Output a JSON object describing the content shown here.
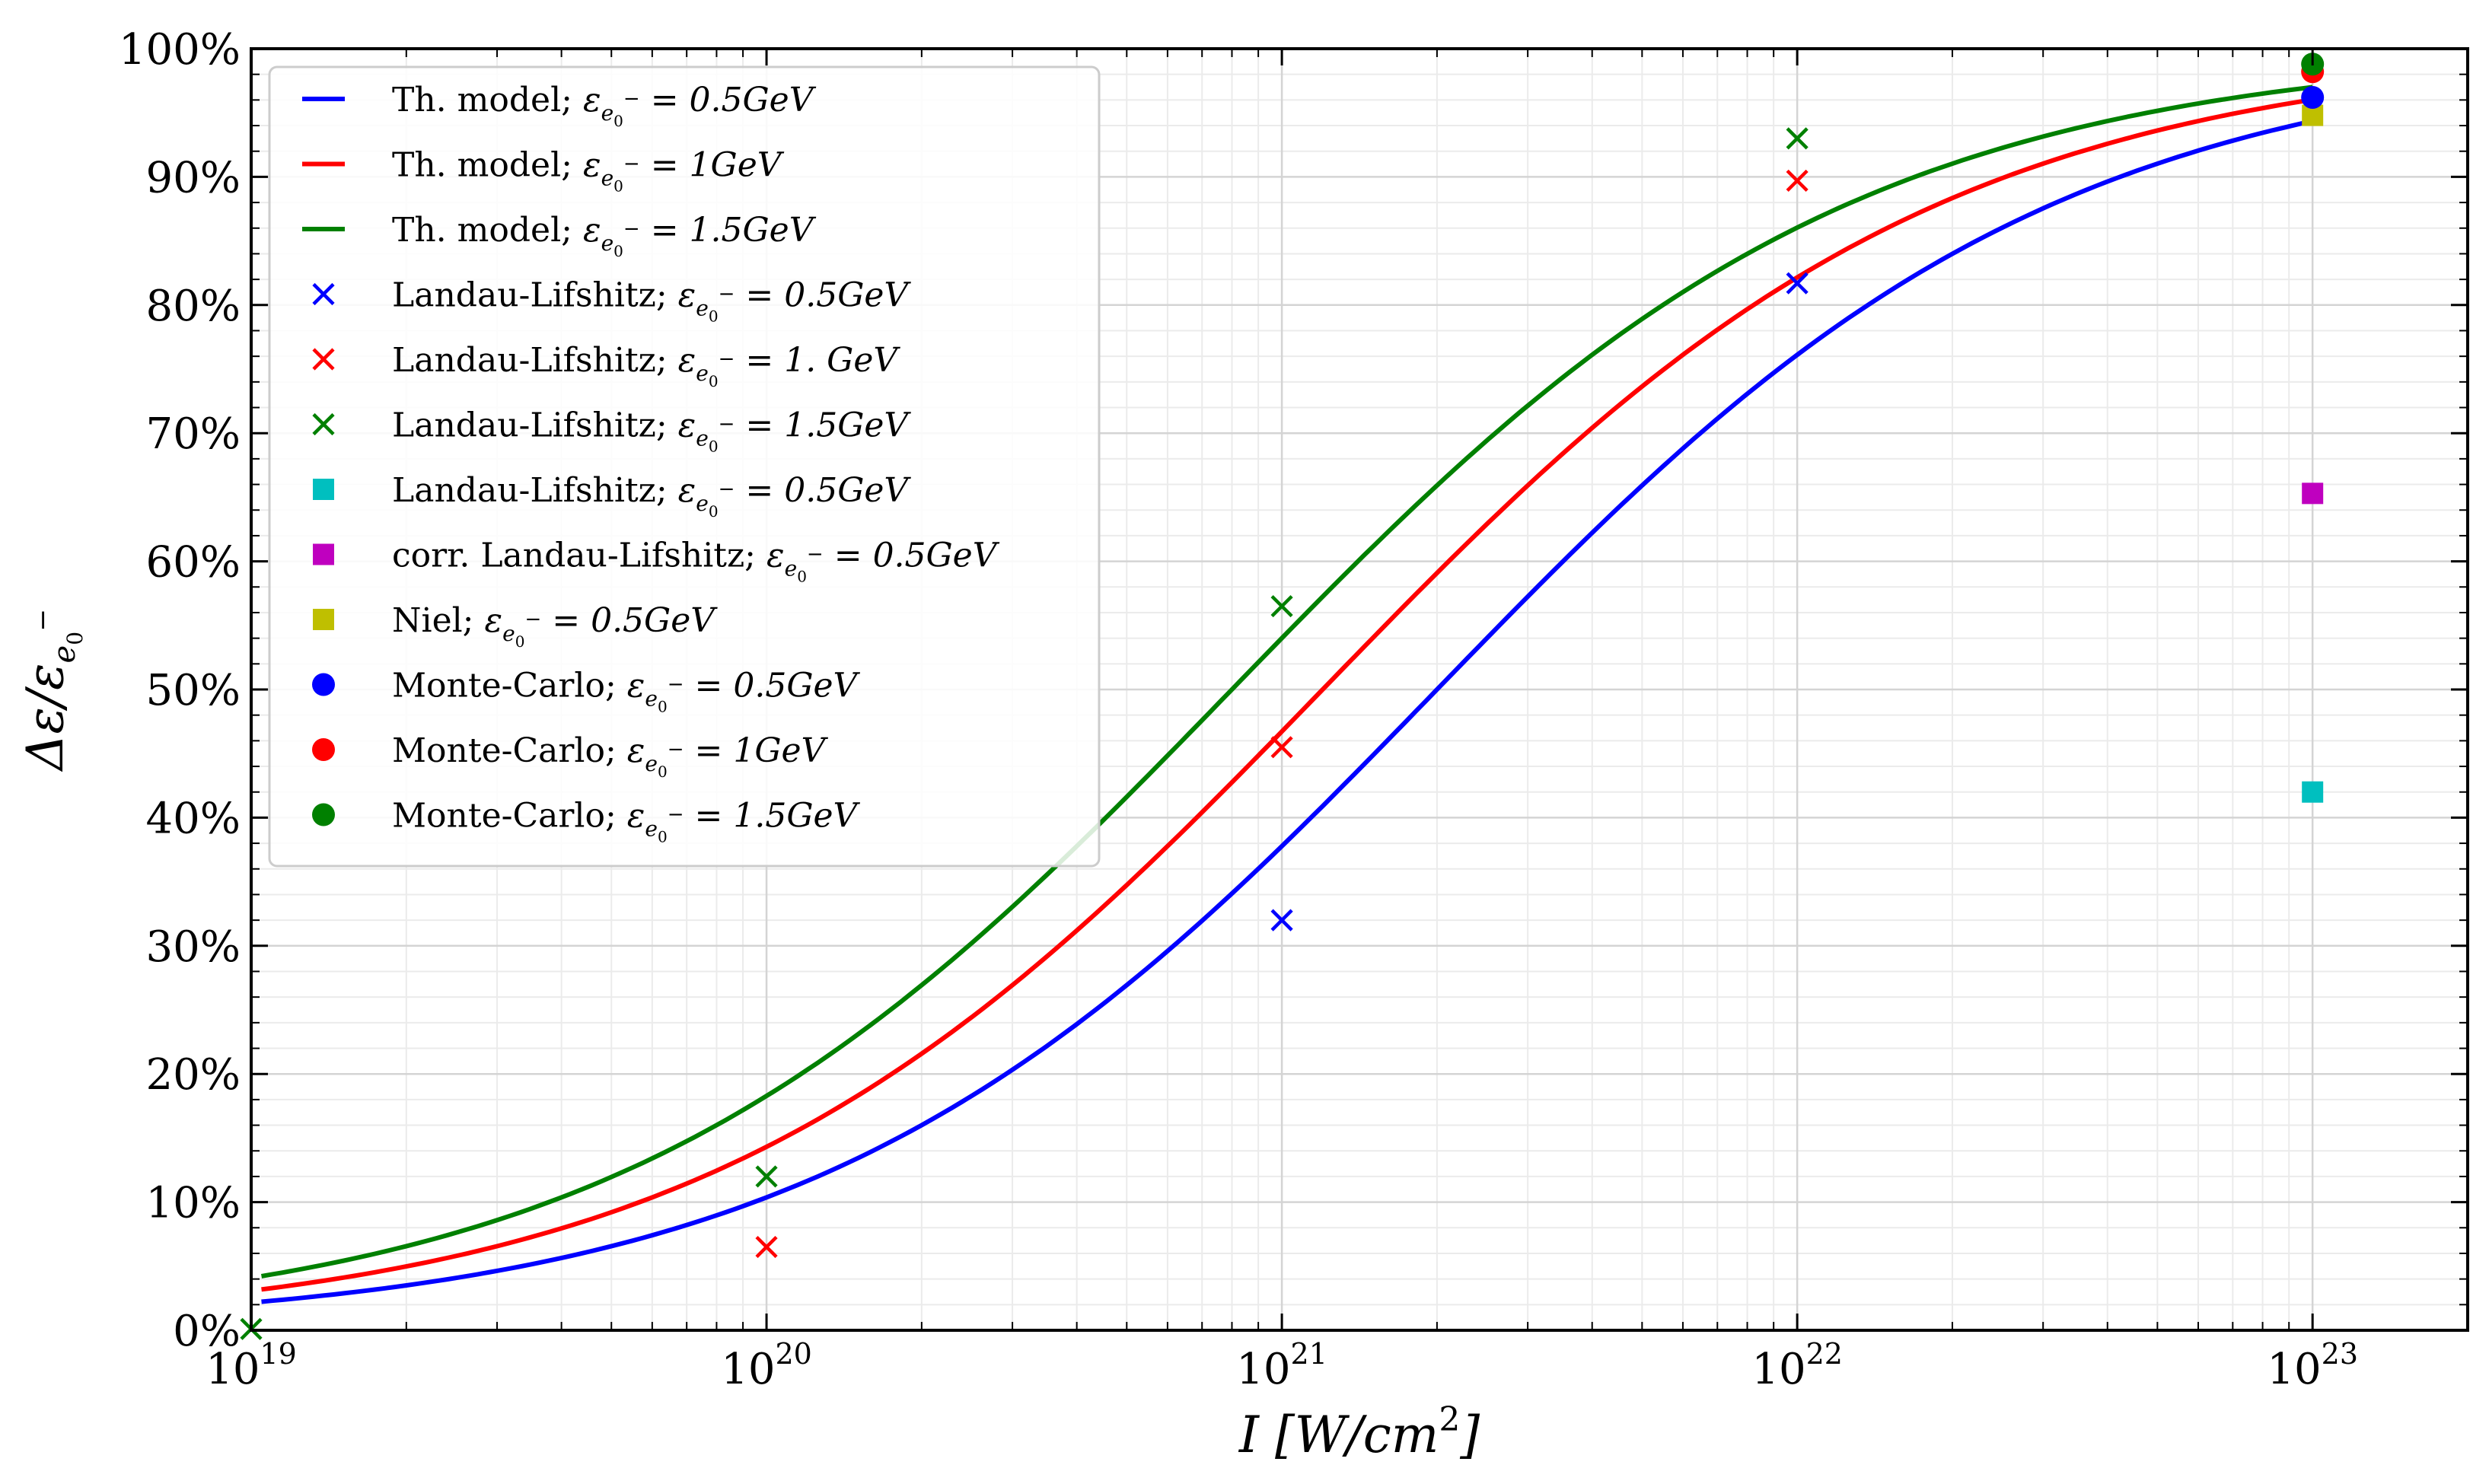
{
  "chart_data": {
    "type": "line",
    "title": "",
    "xlabel": "I [W/cm²]",
    "ylabel": "Δε/ε_e0⁻",
    "xscale": "log",
    "xlim": [
      1e+19,
      2e+23
    ],
    "ylim": [
      0,
      100
    ],
    "grid": true,
    "legend_position": "top-left",
    "x_ticks": [
      {
        "value": 1e+19,
        "base": "10",
        "exp": "19"
      },
      {
        "value": 1e+20,
        "base": "10",
        "exp": "20"
      },
      {
        "value": 1e+21,
        "base": "10",
        "exp": "21"
      },
      {
        "value": 1e+22,
        "base": "10",
        "exp": "22"
      },
      {
        "value": 1e+23,
        "base": "10",
        "exp": "23"
      }
    ],
    "y_ticks": [
      {
        "value": 0,
        "label": "0%"
      },
      {
        "value": 10,
        "label": "10%"
      },
      {
        "value": 20,
        "label": "20%"
      },
      {
        "value": 30,
        "label": "30%"
      },
      {
        "value": 40,
        "label": "40%"
      },
      {
        "value": 50,
        "label": "50%"
      },
      {
        "value": 60,
        "label": "60%"
      },
      {
        "value": 70,
        "label": "70%"
      },
      {
        "value": 80,
        "label": "80%"
      },
      {
        "value": 90,
        "label": "90%"
      },
      {
        "value": 100,
        "label": "100%"
      }
    ],
    "curves": [
      {
        "name": "Th. model; ε_e0⁻ = 0.5GeV",
        "color": "#0000ff",
        "energy_gev": 0.5,
        "i_half": 2e+21
      },
      {
        "name": "Th. model; ε_e0⁻ = 1GeV",
        "color": "#ff0000",
        "energy_gev": 1.0,
        "i_half": 1.2e+21
      },
      {
        "name": "Th. model; ε_e0⁻ = 1.5GeV",
        "color": "#008000",
        "energy_gev": 1.5,
        "i_half": 8e+20
      }
    ],
    "series": [
      {
        "name": "Landau-Lifshitz; ε_e0⁻ = 0.5GeV",
        "marker": "x",
        "color": "#0000ff",
        "points": [
          {
            "x": 1e+21,
            "y": 32
          },
          {
            "x": 1e+22,
            "y": 81.7
          }
        ]
      },
      {
        "name": "Landau-Lifshitz; ε_e0⁻ = 1. GeV",
        "marker": "x",
        "color": "#ff0000",
        "points": [
          {
            "x": 1e+20,
            "y": 6.5
          },
          {
            "x": 1e+21,
            "y": 45.5
          },
          {
            "x": 1e+22,
            "y": 89.7
          }
        ]
      },
      {
        "name": "Landau-Lifshitz; ε_e0⁻ = 1.5GeV",
        "marker": "x",
        "color": "#008000",
        "points": [
          {
            "x": 1e+19,
            "y": 0.1
          },
          {
            "x": 1e+20,
            "y": 12
          },
          {
            "x": 1e+21,
            "y": 56.5
          },
          {
            "x": 1e+22,
            "y": 93
          }
        ]
      },
      {
        "name": "Landau-Lifshitz; ε_e0⁻ = 0.5GeV",
        "marker": "square",
        "color": "#00bfbf",
        "points": [
          {
            "x": 1e+23,
            "y": 42
          }
        ]
      },
      {
        "name": "corr. Landau-Lifshitz; ε_e0⁻ = 0.5GeV",
        "marker": "square",
        "color": "#bf00bf",
        "points": [
          {
            "x": 1e+23,
            "y": 65.3
          }
        ]
      },
      {
        "name": "Niel; ε_e0⁻ = 0.5GeV",
        "marker": "square",
        "color": "#bfbf00",
        "points": [
          {
            "x": 1e+23,
            "y": 94.8
          }
        ]
      },
      {
        "name": "Monte-Carlo; ε_e0⁻ = 0.5GeV",
        "marker": "circle",
        "color": "#0000ff",
        "points": [
          {
            "x": 1e+23,
            "y": 96.2
          }
        ]
      },
      {
        "name": "Monte-Carlo; ε_e0⁻ = 1GeV",
        "marker": "circle",
        "color": "#ff0000",
        "points": [
          {
            "x": 1e+23,
            "y": 98.2
          }
        ]
      },
      {
        "name": "Monte-Carlo; ε_e0⁻ = 1.5GeV",
        "marker": "circle",
        "color": "#008000",
        "points": [
          {
            "x": 1e+23,
            "y": 98.8
          }
        ]
      }
    ],
    "legend": [
      {
        "prefix": "Th. model; ",
        "value": "0.5GeV",
        "marker": "line",
        "color": "#0000ff"
      },
      {
        "prefix": "Th. model; ",
        "value": "1GeV",
        "marker": "line",
        "color": "#ff0000"
      },
      {
        "prefix": "Th. model; ",
        "value": "1.5GeV",
        "marker": "line",
        "color": "#008000"
      },
      {
        "prefix": "Landau-Lifshitz; ",
        "value": "0.5GeV",
        "marker": "x",
        "color": "#0000ff"
      },
      {
        "prefix": "Landau-Lifshitz; ",
        "value": "1. GeV",
        "marker": "x",
        "color": "#ff0000"
      },
      {
        "prefix": "Landau-Lifshitz; ",
        "value": "1.5GeV",
        "marker": "x",
        "color": "#008000"
      },
      {
        "prefix": "Landau-Lifshitz; ",
        "value": "0.5GeV",
        "marker": "square",
        "color": "#00bfbf"
      },
      {
        "prefix": "corr. Landau-Lifshitz; ",
        "value": "0.5GeV",
        "marker": "square",
        "color": "#bf00bf"
      },
      {
        "prefix": "Niel; ",
        "value": "0.5GeV",
        "marker": "square",
        "color": "#bfbf00"
      },
      {
        "prefix": "Monte-Carlo; ",
        "value": "0.5GeV",
        "marker": "circle",
        "color": "#0000ff"
      },
      {
        "prefix": "Monte-Carlo; ",
        "value": "1GeV",
        "marker": "circle",
        "color": "#ff0000"
      },
      {
        "prefix": "Monte-Carlo; ",
        "value": "1.5GeV",
        "marker": "circle",
        "color": "#008000"
      }
    ]
  }
}
